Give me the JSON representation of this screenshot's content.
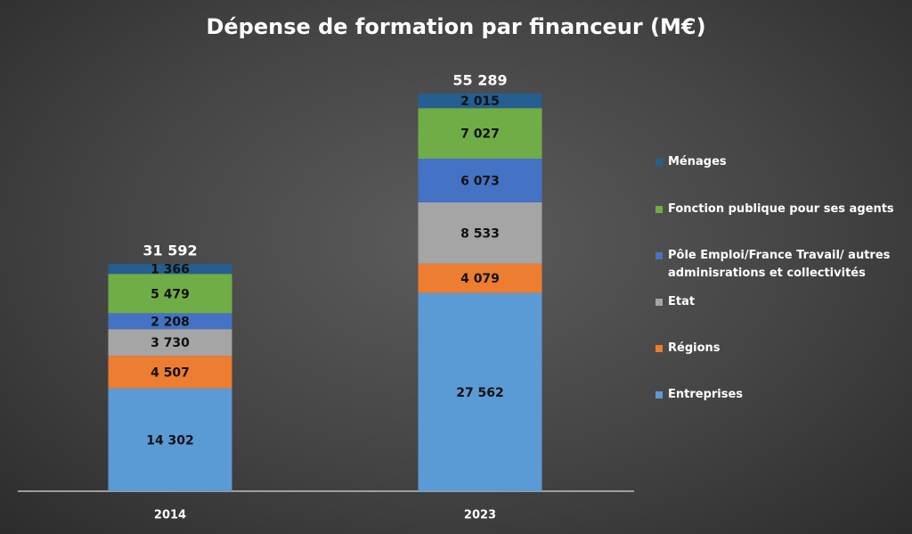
{
  "chart_data": {
    "type": "stacked_bar",
    "title": "Dépense de formation par financeur (M€)",
    "categories": [
      "2014",
      "2023"
    ],
    "series": [
      {
        "name": "Entreprises",
        "color": "#5b9bd5",
        "values": [
          14302,
          27562
        ],
        "value_labels": [
          "14 302",
          "27 562"
        ]
      },
      {
        "name": "Régions",
        "color": "#ed7d31",
        "values": [
          4507,
          4079
        ],
        "value_labels": [
          "4 507",
          "4 079"
        ]
      },
      {
        "name": "Etat",
        "color": "#a5a5a5",
        "values": [
          3730,
          8533
        ],
        "value_labels": [
          "3 730",
          "8 533"
        ]
      },
      {
        "name": "Pôle Emploi/France Travail/ autres adminisrations et collectivités",
        "color": "#4472c4",
        "values": [
          2208,
          6073
        ],
        "value_labels": [
          "2 208",
          "6 073"
        ]
      },
      {
        "name": "Fonction publique pour ses agents",
        "color": "#70ad47",
        "values": [
          5479,
          7027
        ],
        "value_labels": [
          "5 479",
          "7 027"
        ]
      },
      {
        "name": "Ménages",
        "color": "#255e91",
        "values": [
          1366,
          2015
        ],
        "value_labels": [
          "1 366",
          "2 015"
        ]
      }
    ],
    "totals": [
      31592,
      55289
    ],
    "total_labels": [
      "31 592",
      "55 289"
    ]
  }
}
